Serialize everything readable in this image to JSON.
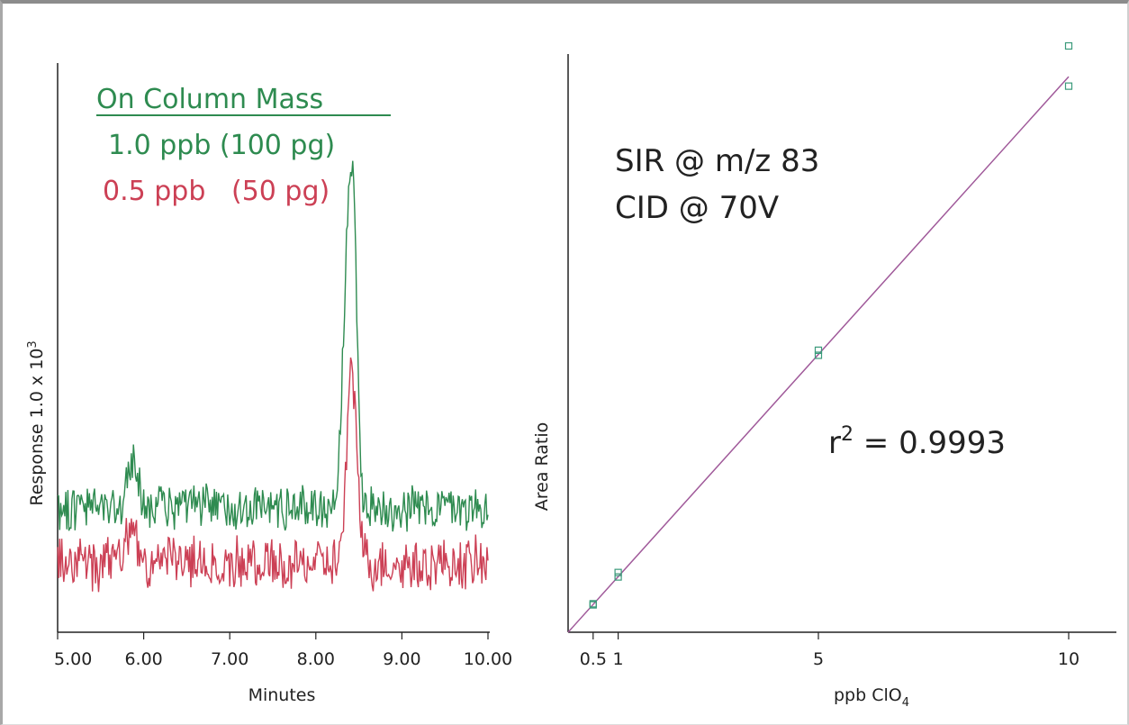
{
  "chart_data": [
    {
      "type": "line",
      "xlabel": "Minutes",
      "ylabel": "Response 1.0 x 10",
      "ylabel_exponent": "3",
      "xlim": [
        5.0,
        10.0
      ],
      "xticks": [
        "5.00",
        "6.00",
        "7.00",
        "8.00",
        "9.00",
        "10.00"
      ],
      "legend_title": "On Column Mass",
      "grid": false,
      "series": [
        {
          "name": "1.0 ppb (100 pg)",
          "color": "#2e8b50",
          "baseline": 0.22,
          "noise": 0.035,
          "peaks": [
            {
              "x": 5.88,
              "height": 0.08,
              "width": 0.06
            },
            {
              "x": 8.36,
              "height": 0.38,
              "width": 0.055
            },
            {
              "x": 8.44,
              "height": 0.42,
              "width": 0.045
            }
          ]
        },
        {
          "name": "0.5 ppb   (50 pg)",
          "color": "#cc4055",
          "baseline": 0.12,
          "noise": 0.04,
          "peaks": [
            {
              "x": 5.85,
              "height": 0.06,
              "width": 0.06
            },
            {
              "x": 8.42,
              "height": 0.33,
              "width": 0.06
            }
          ]
        }
      ]
    },
    {
      "type": "scatter",
      "xlabel": "ppb ClO",
      "xlabel_subscript": "4",
      "ylabel": "Area Ratio",
      "xlim": [
        0,
        11
      ],
      "xticks": [
        "0.5",
        "1",
        "5",
        "10"
      ],
      "grid": false,
      "points": [
        {
          "x": 0.5,
          "y": 0.049
        },
        {
          "x": 0.5,
          "y": 0.051
        },
        {
          "x": 1.0,
          "y": 0.099
        },
        {
          "x": 1.0,
          "y": 0.107
        },
        {
          "x": 5.0,
          "y": 0.496
        },
        {
          "x": 5.0,
          "y": 0.505
        },
        {
          "x": 10.0,
          "y": 0.978
        },
        {
          "x": 10.0,
          "y": 1.05
        }
      ],
      "fit": {
        "slope": 0.0995,
        "intercept": 0.0
      },
      "annotations": [
        "SIR @ m/z 83",
        "CID @ 70V"
      ],
      "r2_label": "r",
      "r2_exponent": "2",
      "r2_value": " = 0.9993",
      "point_color": "#3a9a7a",
      "fit_color": "#a05a9a"
    }
  ]
}
